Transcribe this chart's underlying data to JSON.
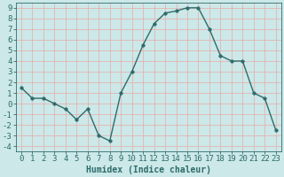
{
  "x": [
    0,
    1,
    2,
    3,
    4,
    5,
    6,
    7,
    8,
    9,
    10,
    11,
    12,
    13,
    14,
    15,
    16,
    17,
    18,
    19,
    20,
    21,
    22,
    23
  ],
  "y": [
    1.5,
    0.5,
    0.5,
    0.0,
    -0.5,
    -1.5,
    -0.5,
    -3.0,
    -3.5,
    1.0,
    3.0,
    5.5,
    7.5,
    8.5,
    8.7,
    9.0,
    9.0,
    7.0,
    4.5,
    4.0,
    4.0,
    1.0,
    0.5,
    -2.5
  ],
  "line_color": "#2e6b6b",
  "marker": "o",
  "marker_size": 2.5,
  "background_color": "#cce8e8",
  "grid_color": "#e8aaaa",
  "xlabel": "Humidex (Indice chaleur)",
  "xlim": [
    -0.5,
    23.5
  ],
  "ylim": [
    -4.5,
    9.5
  ],
  "xtick_labels": [
    "0",
    "1",
    "2",
    "3",
    "4",
    "5",
    "6",
    "7",
    "8",
    "9",
    "10",
    "11",
    "12",
    "13",
    "14",
    "15",
    "16",
    "17",
    "18",
    "19",
    "20",
    "21",
    "22",
    "23"
  ],
  "ytick_values": [
    -4,
    -3,
    -2,
    -1,
    0,
    1,
    2,
    3,
    4,
    5,
    6,
    7,
    8,
    9
  ],
  "tick_color": "#2e6b6b",
  "label_fontsize": 7,
  "tick_fontsize": 6.5,
  "linewidth": 1.0
}
